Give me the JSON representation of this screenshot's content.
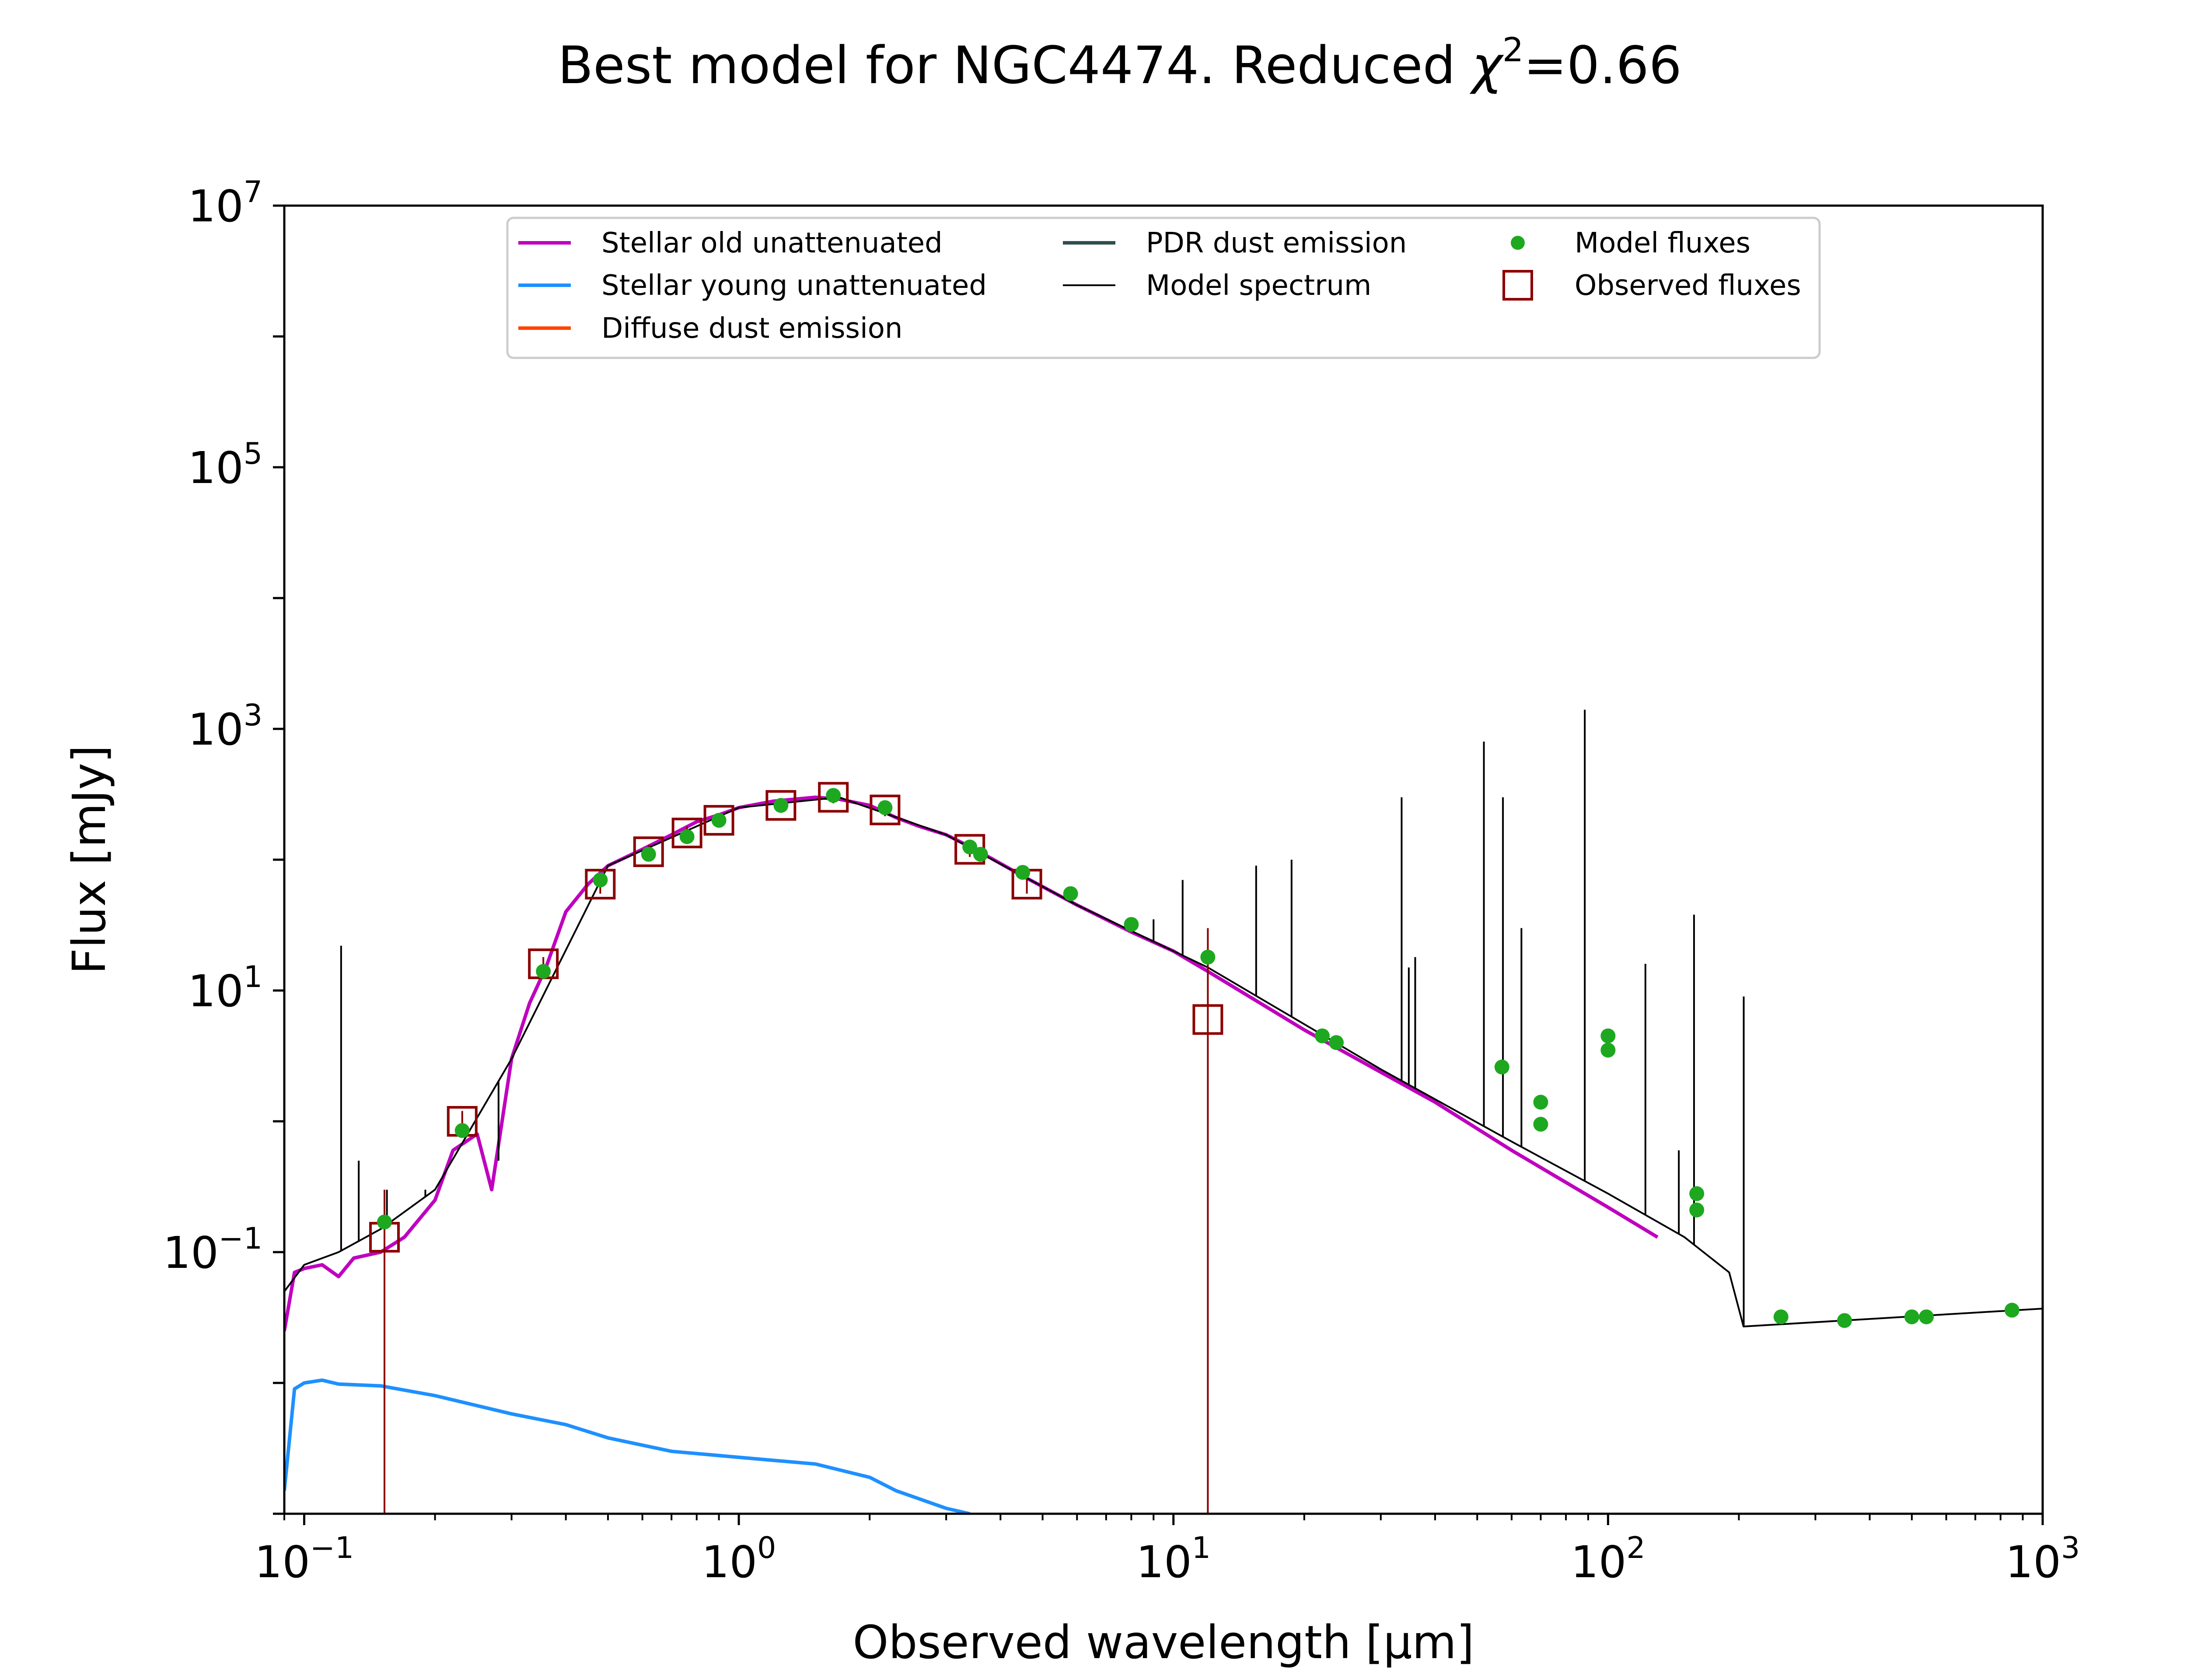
{
  "chart_data": {
    "type": "line",
    "title_text": "Best model for NGC4474. Reduced ",
    "title_chi": "χ",
    "title_chi_exp": "2",
    "title_value": "=0.66",
    "xlabel": "Observed wavelength [μm]",
    "ylabel": "Flux [mJy]",
    "x_scale": "log",
    "y_scale": "log",
    "xlim": [
      0.09,
      1000
    ],
    "ylim": [
      0.001,
      10000000
    ],
    "x_ticks": [
      {
        "base": "10",
        "exp": "−1",
        "value": 0.1
      },
      {
        "base": "10",
        "exp": "0",
        "value": 1
      },
      {
        "base": "10",
        "exp": "1",
        "value": 10
      },
      {
        "base": "10",
        "exp": "2",
        "value": 100
      },
      {
        "base": "10",
        "exp": "3",
        "value": 1000
      }
    ],
    "y_ticks": [
      {
        "base": "10",
        "exp": "−1",
        "value": 0.1
      },
      {
        "base": "10",
        "exp": "1",
        "value": 10
      },
      {
        "base": "10",
        "exp": "3",
        "value": 1000
      },
      {
        "base": "10",
        "exp": "5",
        "value": 100000
      },
      {
        "base": "10",
        "exp": "7",
        "value": 10000000
      }
    ],
    "grid": false,
    "legend_position": "top-center",
    "legend": [
      {
        "label": "Stellar old unattenuated",
        "color": "#bf00bf",
        "marker": "line"
      },
      {
        "label": "Stellar young unattenuated",
        "color": "#1e90ff",
        "marker": "line"
      },
      {
        "label": "Diffuse dust emission",
        "color": "#ff4500",
        "marker": "line"
      },
      {
        "label": "PDR dust emission",
        "color": "#2f4f4f",
        "marker": "line"
      },
      {
        "label": "Model spectrum",
        "color": "#000000",
        "marker": "thin-line"
      },
      {
        "label": "Model fluxes",
        "color": "#1ea820",
        "marker": "dot"
      },
      {
        "label": "Observed fluxes",
        "color": "#8b0000",
        "marker": "open-square"
      }
    ],
    "series": [
      {
        "name": "Stellar old unattenuated",
        "color": "#bf00bf",
        "x": [
          0.09,
          0.095,
          0.1,
          0.11,
          0.12,
          0.13,
          0.15,
          0.17,
          0.2,
          0.22,
          0.25,
          0.27,
          0.3,
          0.33,
          0.36,
          0.4,
          0.45,
          0.5,
          0.6,
          0.7,
          0.8,
          0.9,
          1.0,
          1.2,
          1.5,
          1.7,
          2.0,
          2.3,
          2.6,
          3.0,
          3.5,
          4.5,
          6.0,
          8.0,
          10.0,
          12.0,
          20.0,
          40.0,
          60.0,
          100.0,
          130.0
        ],
        "y": [
          0.025,
          0.07,
          0.075,
          0.08,
          0.065,
          0.09,
          0.1,
          0.13,
          0.25,
          0.6,
          0.8,
          0.3,
          3.0,
          8.0,
          15.0,
          40.0,
          65.0,
          90.0,
          120.0,
          155.0,
          195.0,
          220.0,
          250.0,
          280.0,
          300.0,
          290.0,
          260.0,
          210.0,
          180.0,
          155.0,
          120.0,
          75.0,
          45.0,
          28.0,
          20.0,
          14.0,
          5.0,
          1.4,
          0.6,
          0.22,
          0.13
        ]
      },
      {
        "name": "Stellar young unattenuated",
        "color": "#1e90ff",
        "x": [
          0.09,
          0.095,
          0.1,
          0.11,
          0.12,
          0.15,
          0.2,
          0.3,
          0.4,
          0.5,
          0.7,
          1.0,
          1.5,
          2.0,
          2.3,
          2.6,
          3.0,
          3.4
        ],
        "y": [
          0.0015,
          0.009,
          0.01,
          0.0105,
          0.0098,
          0.0095,
          0.008,
          0.0058,
          0.0048,
          0.0038,
          0.003,
          0.0027,
          0.0024,
          0.0019,
          0.0015,
          0.0013,
          0.0011,
          0.001
        ]
      },
      {
        "name": "Model spectrum",
        "color": "#000000",
        "x": [
          0.09,
          0.1,
          0.12,
          0.15,
          0.2,
          0.3,
          0.5,
          1.0,
          1.7,
          3.0,
          6.0,
          12.0,
          30.0,
          60.0,
          100.0,
          150.0,
          190.0,
          205.0,
          1000.0
        ],
        "y": [
          0.05,
          0.08,
          0.1,
          0.15,
          0.3,
          3.0,
          90.0,
          250.0,
          300.0,
          155.0,
          45.0,
          15.0,
          2.5,
          0.7,
          0.28,
          0.13,
          0.07,
          0.027,
          0.037
        ]
      }
    ],
    "emission_lines": [
      {
        "x": 0.1216,
        "y": 22
      },
      {
        "x": 0.1335,
        "y": 0.5
      },
      {
        "x": 0.155,
        "y": 0.3
      },
      {
        "x": 0.19,
        "y": 0.3
      },
      {
        "x": 0.28,
        "y": 0.5
      },
      {
        "x": 9.0,
        "y": 35
      },
      {
        "x": 10.5,
        "y": 70
      },
      {
        "x": 15.5,
        "y": 90
      },
      {
        "x": 18.7,
        "y": 100
      },
      {
        "x": 33.5,
        "y": 300
      },
      {
        "x": 34.8,
        "y": 15
      },
      {
        "x": 36.0,
        "y": 18
      },
      {
        "x": 51.8,
        "y": 800
      },
      {
        "x": 57.3,
        "y": 300
      },
      {
        "x": 63.2,
        "y": 30
      },
      {
        "x": 88.4,
        "y": 1400
      },
      {
        "x": 121.9,
        "y": 16
      },
      {
        "x": 145.5,
        "y": 0.6
      },
      {
        "x": 157.7,
        "y": 38
      },
      {
        "x": 205.2,
        "y": 9
      }
    ],
    "model_fluxes": {
      "x": [
        0.153,
        0.231,
        0.355,
        0.48,
        0.62,
        0.76,
        0.9,
        1.25,
        1.65,
        2.17,
        3.4,
        3.6,
        4.5,
        5.8,
        8.0,
        12.0,
        22.0,
        23.7,
        57.0,
        70.0,
        70.0,
        100.0,
        100.0,
        160.0,
        160.0,
        250.0,
        350.0,
        500.0,
        540.0,
        850.0
      ],
      "y": [
        0.17,
        0.85,
        14.0,
        70.0,
        110.0,
        150.0,
        200.0,
        260.0,
        310.0,
        250.0,
        125.0,
        110.0,
        80.0,
        55.0,
        32.0,
        18.0,
        4.5,
        4.0,
        2.6,
        1.4,
        0.95,
        4.5,
        3.5,
        0.28,
        0.21,
        0.032,
        0.03,
        0.032,
        0.032,
        0.036
      ]
    },
    "observed_fluxes": {
      "x": [
        0.153,
        0.231,
        0.355,
        0.48,
        0.62,
        0.76,
        0.9,
        1.25,
        1.65,
        2.17,
        3.4,
        4.6,
        12.0
      ],
      "y": [
        0.13,
        1.0,
        16.0,
        65.0,
        115.0,
        160.0,
        200.0,
        260.0,
        300.0,
        240.0,
        120.0,
        65.0,
        6.0
      ],
      "err_low": [
        0.001,
        0.85,
        14.0,
        55.0,
        100.0,
        140.0,
        180.0,
        230.0,
        270.0,
        215.0,
        105.0,
        55.0,
        0.001
      ],
      "err_high": [
        0.3,
        1.2,
        18.0,
        75.0,
        130.0,
        180.0,
        220.0,
        290.0,
        340.0,
        270.0,
        135.0,
        75.0,
        30.0
      ]
    }
  }
}
